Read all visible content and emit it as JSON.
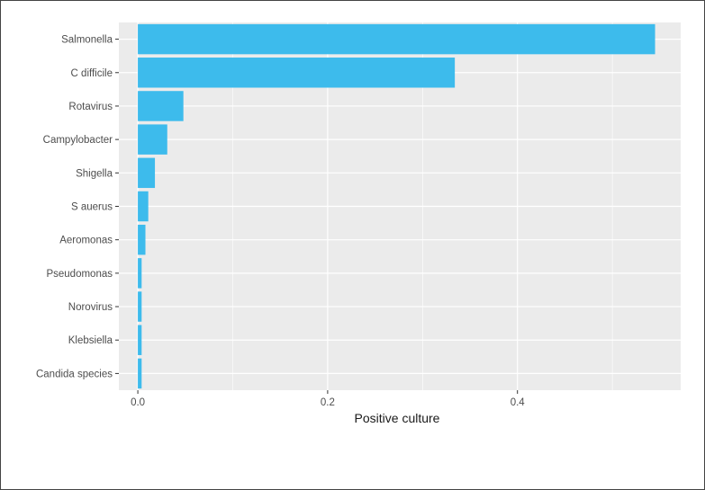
{
  "colors": {
    "panel_background": "#ebebeb",
    "gridline": "#ffffff",
    "bar_fill": "#3dbbec",
    "tick_text": "#4d4d4d",
    "tick_mark": "#333333"
  },
  "chart_data": {
    "type": "bar",
    "orientation": "horizontal",
    "categories": [
      "Salmonella",
      "C difficile",
      "Rotavirus",
      "Campylobacter",
      "Shigella",
      "S auerus",
      "Aeromonas",
      "Pseudomonas",
      "Norovirus",
      "Klebsiella",
      "Candida species"
    ],
    "values": [
      0.545,
      0.334,
      0.048,
      0.031,
      0.018,
      0.011,
      0.008,
      0.004,
      0.004,
      0.004,
      0.004
    ],
    "xlabel": "Positive culture",
    "ylabel": "",
    "xlim": [
      -0.02,
      0.572
    ],
    "xticks": [
      0.0,
      0.2,
      0.4
    ],
    "xtick_labels": [
      "0.0",
      "0.2",
      "0.4"
    ],
    "grid": true,
    "legend": "none"
  }
}
